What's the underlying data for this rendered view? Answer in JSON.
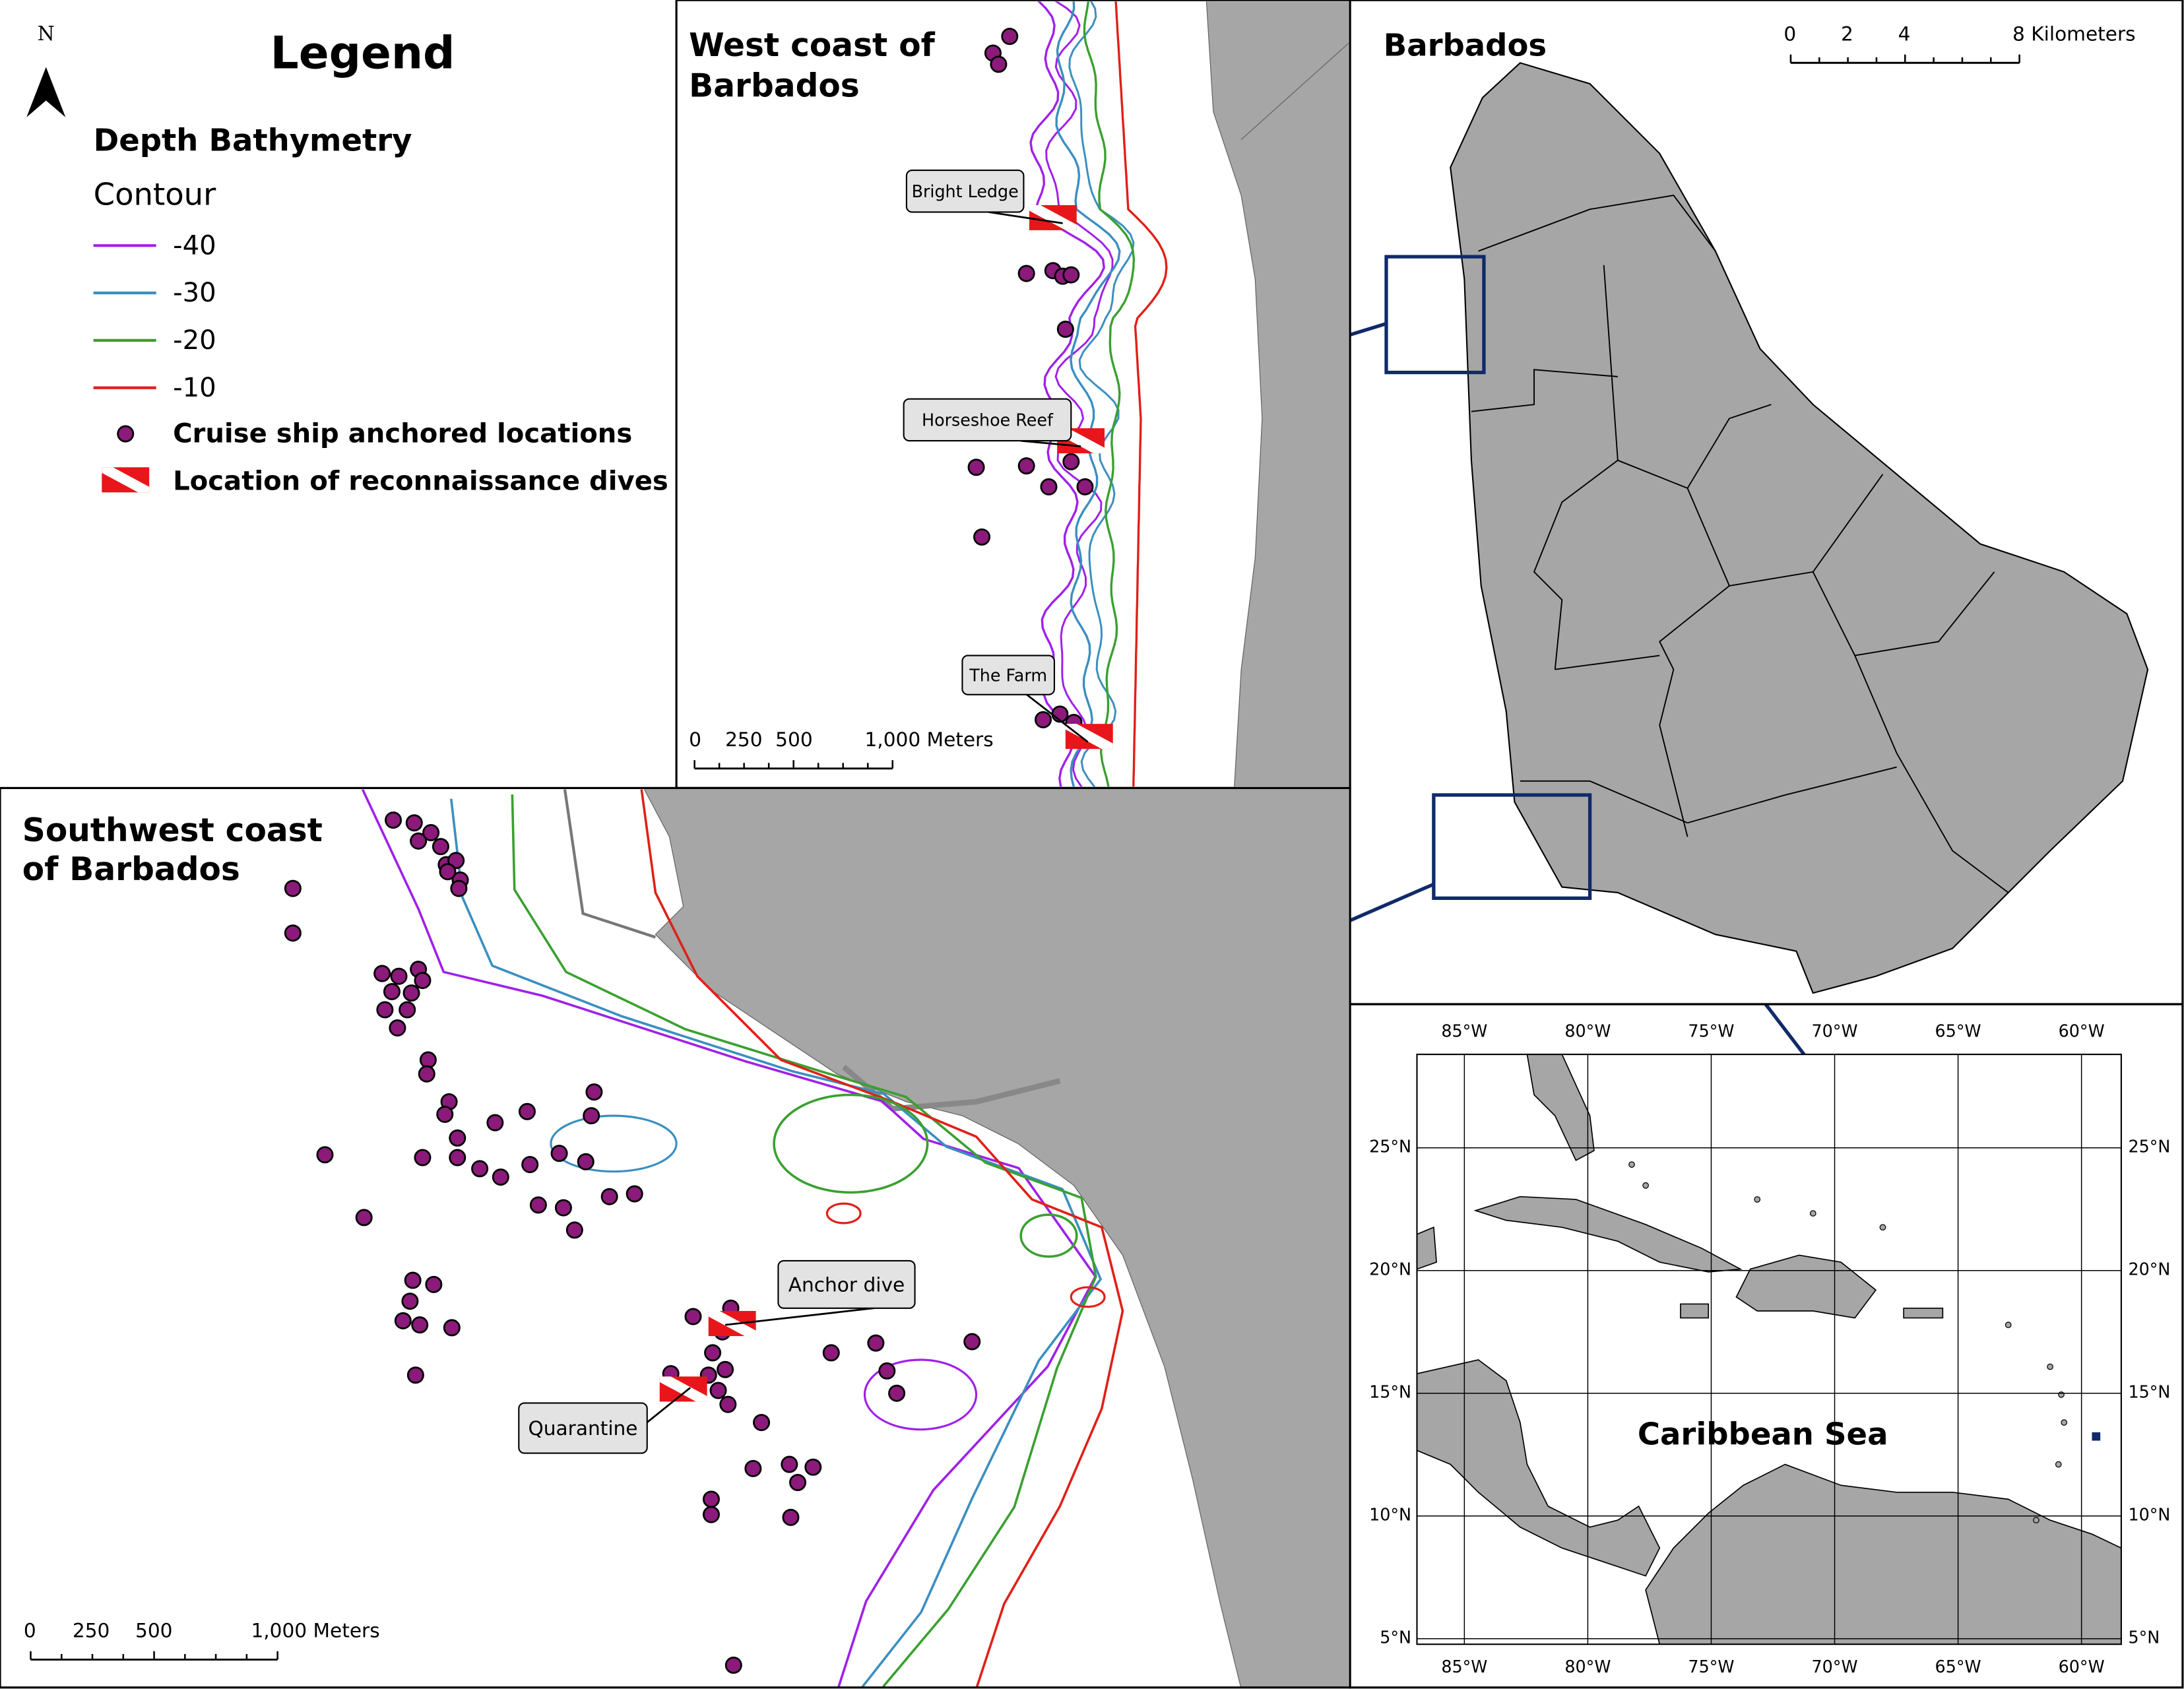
{
  "legend": {
    "north": "N",
    "title": "Legend",
    "section": "Depth Bathymetry",
    "subsection": "Contour",
    "contours": [
      {
        "label": "-40",
        "color": "#a020e8"
      },
      {
        "label": "-30",
        "color": "#3a8fc0"
      },
      {
        "label": "-20",
        "color": "#3aa030"
      },
      {
        "label": "-10",
        "color": "#e02018"
      }
    ],
    "symbols": [
      "Cruise ship anchored locations",
      "Location of reconnaissance dives"
    ]
  },
  "west_panel": {
    "title": [
      "West coast of",
      "Barbados"
    ],
    "labels": [
      "Bright Ledge",
      "Horseshoe Reef",
      "The Farm"
    ],
    "scale": [
      "0",
      "250",
      "500",
      "1,000 Meters"
    ]
  },
  "southwest_panel": {
    "title": [
      "Southwest coast",
      "of Barbados"
    ],
    "labels": [
      "Anchor dive",
      "Quarantine"
    ],
    "scale": [
      "0",
      "250",
      "500",
      "1,000 Meters"
    ]
  },
  "barbados_panel": {
    "title": "Barbados",
    "scale": [
      "0",
      "2",
      "4",
      "8 Kilometers"
    ]
  },
  "caribbean_panel": {
    "lon_labels": [
      "85°W",
      "80°W",
      "75°W",
      "70°W",
      "65°W",
      "60°W"
    ],
    "lat_labels": [
      "25°N",
      "20°N",
      "15°N",
      "10°N",
      "5°N"
    ],
    "sea_label": "Caribbean Sea"
  }
}
